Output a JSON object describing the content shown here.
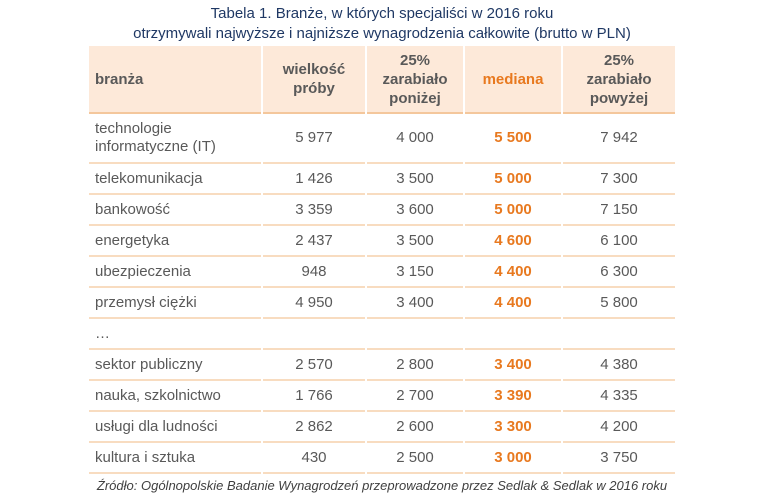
{
  "title": {
    "line1": "Tabela 1. Branże, w których specjaliści w 2016 roku",
    "line2": "otrzymywali najwyższe i najniższe wynagrodzenia całkowite (brutto w PLN)"
  },
  "headers": [
    "branża",
    "wielkość próby",
    "25% zarabiało poniżej",
    "mediana",
    "25% zarabiało powyżej"
  ],
  "rows": [
    [
      "technologie informatyczne (IT)",
      "5 977",
      "4 000",
      "5 500",
      "7 942"
    ],
    [
      "telekomunikacja",
      "1 426",
      "3 500",
      "5 000",
      "7 300"
    ],
    [
      "bankowość",
      "3 359",
      "3 600",
      "5 000",
      "7 150"
    ],
    [
      "energetyka",
      "2 437",
      "3 500",
      "4 600",
      "6 100"
    ],
    [
      "ubezpieczenia",
      "948",
      "3 150",
      "4 400",
      "6 300"
    ],
    [
      "przemysł ciężki",
      "4 950",
      "3 400",
      "4 400",
      "5 800"
    ],
    [
      "…",
      "",
      "",
      "",
      ""
    ],
    [
      "sektor publiczny",
      "2 570",
      "2 800",
      "3 400",
      "4 380"
    ],
    [
      "nauka, szkolnictwo",
      "1 766",
      "2 700",
      "3 390",
      "4 335"
    ],
    [
      "usługi dla ludności",
      "2 862",
      "2 600",
      "3 300",
      "4 200"
    ],
    [
      "kultura i sztuka",
      "430",
      "2 500",
      "3 000",
      "3 750"
    ]
  ],
  "source": "Źródło: Ogólnopolskie Badanie Wynagrodzeń przeprowadzone przez Sedlak & Sedlak w 2016 roku",
  "colors": {
    "title": "#1f3864",
    "accent": "#e8791f",
    "header_bg": "#fde9d9"
  }
}
